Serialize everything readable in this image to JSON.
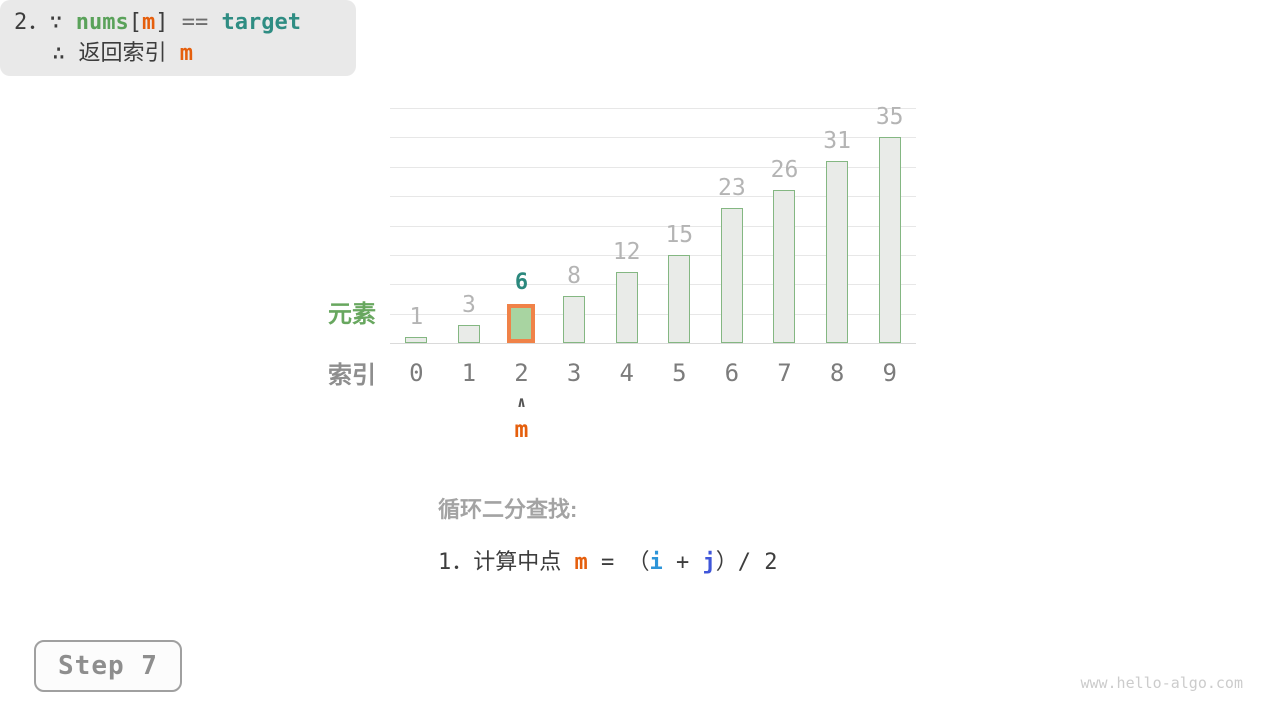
{
  "page": {
    "watermark": "www.hello-algo.com",
    "background": "#ffffff"
  },
  "colors": {
    "bar_fill": "#e9ebe8",
    "bar_border": "#84b782",
    "highlight_fill": "#a8d4a1",
    "highlight_border": "#f08248",
    "value_label_gray": "#b4b4b4",
    "highlight_value_teal": "#2b887d",
    "index_gray": "#7c7c7c",
    "ylabel_green": "#68a75f",
    "orange_m": "#e55f0d",
    "blue_i": "#2d95d9",
    "blue_j": "#3f56d9",
    "green_nums": "#5aa25a",
    "teal_target": "#2f8d83",
    "box_bg": "#e9e9e9"
  },
  "chart_data": {
    "type": "bar",
    "categories": [
      "0",
      "1",
      "2",
      "3",
      "4",
      "5",
      "6",
      "7",
      "8",
      "9"
    ],
    "values": [
      1,
      3,
      6,
      8,
      12,
      15,
      23,
      26,
      31,
      35
    ],
    "title": "",
    "xlabel": "索引",
    "ylabel": "元素",
    "ylim": [
      0,
      40
    ],
    "gridline_step": 5,
    "grid": true,
    "legend_position": "none",
    "highlight": {
      "index": 2,
      "value": 6,
      "pointer_caret": "∧",
      "pointer_label": "m"
    }
  },
  "annotation": {
    "heading": "循环二分查找:",
    "step1": {
      "segments": [
        {
          "t": "1．计算中点 ",
          "c": "plain",
          "n": "step1-prefix"
        },
        {
          "t": "m",
          "c": "m",
          "n": "var-m"
        },
        {
          "t": " = （",
          "c": "plain",
          "n": "equals-open-paren"
        },
        {
          "t": "i",
          "c": "i",
          "n": "var-i"
        },
        {
          "t": " + ",
          "c": "plain",
          "n": "plus-operator"
        },
        {
          "t": "j",
          "c": "j",
          "n": "var-j"
        },
        {
          "t": "）/ 2",
          "c": "plain",
          "n": "close-paren-divide-2"
        }
      ]
    },
    "step2": {
      "line1": {
        "segments": [
          {
            "t": "2．∵ ",
            "c": "plain",
            "n": "step2-prefix-because"
          },
          {
            "t": "nums",
            "c": "nums",
            "n": "var-nums"
          },
          {
            "t": "[",
            "c": "plain",
            "n": "bracket-open"
          },
          {
            "t": "m",
            "c": "m",
            "n": "var-m"
          },
          {
            "t": "]",
            "c": "plain",
            "n": "bracket-close"
          },
          {
            "t": " == ",
            "c": "eq",
            "n": "equality-operator"
          },
          {
            "t": "target",
            "c": "target",
            "n": "var-target"
          }
        ]
      },
      "line2": {
        "segments": [
          {
            "t": "∴ 返回索引 ",
            "c": "plain",
            "n": "therefore-return-index"
          },
          {
            "t": "m",
            "c": "m",
            "n": "var-m"
          }
        ]
      }
    }
  },
  "step_badge": {
    "label": "Step 7"
  }
}
